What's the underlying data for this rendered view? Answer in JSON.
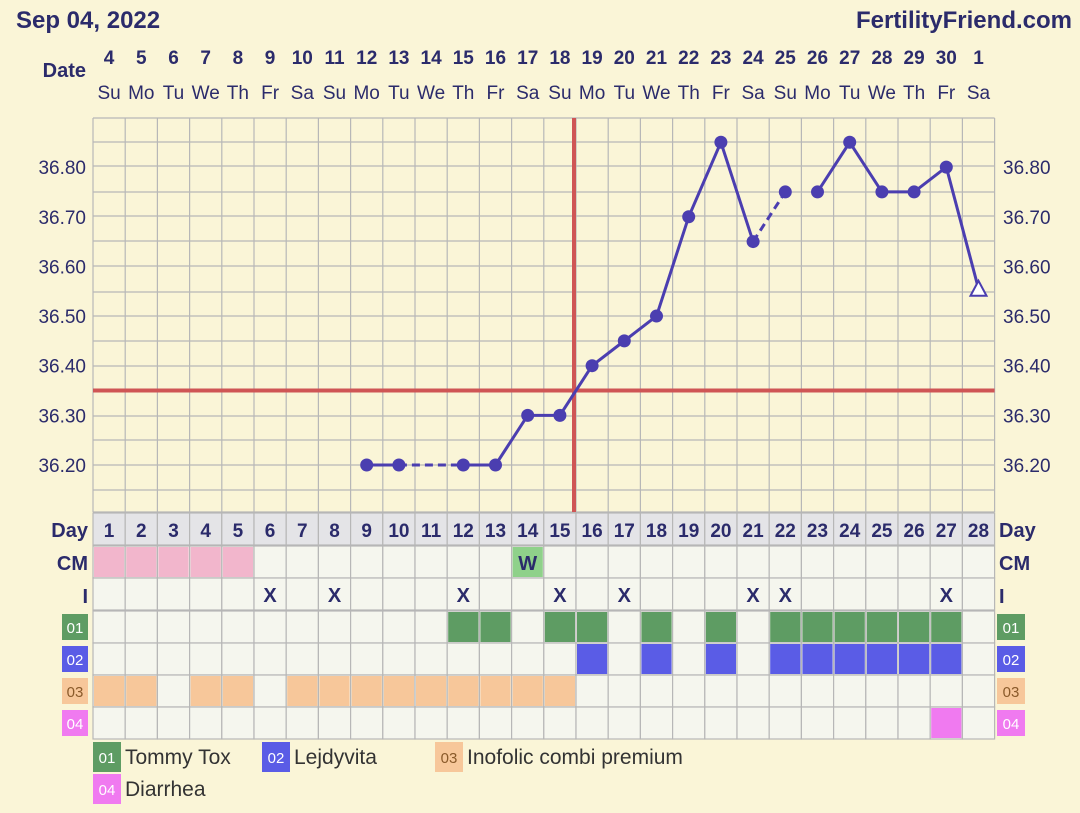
{
  "header": {
    "title": "Sep 04, 2022",
    "brand": "FertilityFriend.com"
  },
  "labels": {
    "date": "Date",
    "day": "Day",
    "cm": "CM",
    "intercourse": "I"
  },
  "colors": {
    "background": "#faf5d7",
    "grid": "#b7b7b7",
    "cell": "#f5f6ee",
    "line": "#4b3eb0",
    "coverline": "#cf5555",
    "text": "#2b2b6b",
    "period": "#f2b6cc",
    "cm_w": "#8fd18a",
    "row01": "#5e9c63",
    "row02": "#5a5ce6",
    "row03": "#f7c79a",
    "row04": "#f07af0"
  },
  "chart_data": {
    "type": "line",
    "title": "",
    "ylim": [
      36.1,
      36.9
    ],
    "y_ticks": [
      "36.20",
      "36.30",
      "36.40",
      "36.50",
      "36.60",
      "36.70",
      "36.80"
    ],
    "dates": [
      "4",
      "5",
      "6",
      "7",
      "8",
      "9",
      "10",
      "11",
      "12",
      "13",
      "14",
      "15",
      "16",
      "17",
      "18",
      "19",
      "20",
      "21",
      "22",
      "23",
      "24",
      "25",
      "26",
      "27",
      "28",
      "29",
      "30",
      "1"
    ],
    "weekdays": [
      "Su",
      "Mo",
      "Tu",
      "We",
      "Th",
      "Fr",
      "Sa",
      "Su",
      "Mo",
      "Tu",
      "We",
      "Th",
      "Fr",
      "Sa",
      "Su",
      "Mo",
      "Tu",
      "We",
      "Th",
      "Fr",
      "Sa",
      "Su",
      "Mo",
      "Tu",
      "We",
      "Th",
      "Fr",
      "Sa"
    ],
    "cycle_days": [
      "1",
      "2",
      "3",
      "4",
      "5",
      "6",
      "7",
      "8",
      "9",
      "10",
      "11",
      "12",
      "13",
      "14",
      "15",
      "16",
      "17",
      "18",
      "19",
      "20",
      "21",
      "22",
      "23",
      "24",
      "25",
      "26",
      "27",
      "28"
    ],
    "temperature_series": {
      "name": "",
      "points": [
        {
          "day": 9,
          "temp": 36.2
        },
        {
          "day": 10,
          "temp": 36.2
        },
        {
          "day": 12,
          "temp": 36.2
        },
        {
          "day": 13,
          "temp": 36.2
        },
        {
          "day": 14,
          "temp": 36.3
        },
        {
          "day": 15,
          "temp": 36.3
        },
        {
          "day": 16,
          "temp": 36.4
        },
        {
          "day": 17,
          "temp": 36.45
        },
        {
          "day": 18,
          "temp": 36.5
        },
        {
          "day": 19,
          "temp": 36.7
        },
        {
          "day": 20,
          "temp": 36.85
        },
        {
          "day": 21,
          "temp": 36.65
        },
        {
          "day": 22,
          "temp": 36.75
        },
        {
          "day": 23,
          "temp": 36.75
        },
        {
          "day": 24,
          "temp": 36.85
        },
        {
          "day": 25,
          "temp": 36.75
        },
        {
          "day": 26,
          "temp": 36.75
        },
        {
          "day": 27,
          "temp": 36.8
        }
      ],
      "segments": [
        {
          "from": 9,
          "to": 10,
          "style": "solid"
        },
        {
          "from": 10,
          "to": 12,
          "style": "dashed"
        },
        {
          "from": 12,
          "to": 21,
          "style": "solid"
        },
        {
          "from": 21,
          "to": 22,
          "style": "dashed"
        },
        {
          "from": 23,
          "to": 28,
          "style": "solid"
        }
      ],
      "open_point": {
        "day": 28,
        "temp": 36.555,
        "marker": "open-triangle"
      }
    },
    "coverline": 36.35,
    "ovulation_line_day": 15,
    "period_days": [
      1,
      2,
      3,
      4,
      5
    ],
    "cm": [
      {
        "day": 14,
        "label": "W"
      }
    ],
    "intercourse_days": [
      6,
      8,
      12,
      15,
      17,
      21,
      22,
      27
    ],
    "intercourse_mark": "X",
    "rows": [
      {
        "key": "01",
        "name": "Tommy Tox",
        "days": [
          12,
          13,
          15,
          16,
          18,
          20,
          22,
          23,
          24,
          25,
          26,
          27
        ]
      },
      {
        "key": "02",
        "name": "Lejdyvita",
        "days": [
          16,
          18,
          20,
          22,
          23,
          24,
          25,
          26,
          27
        ]
      },
      {
        "key": "03",
        "name": "Inofolic combi premium",
        "days": [
          1,
          2,
          4,
          5,
          7,
          8,
          9,
          10,
          11,
          12,
          13,
          14,
          15
        ]
      },
      {
        "key": "04",
        "name": "Diarrhea",
        "days": [
          27
        ]
      }
    ]
  }
}
